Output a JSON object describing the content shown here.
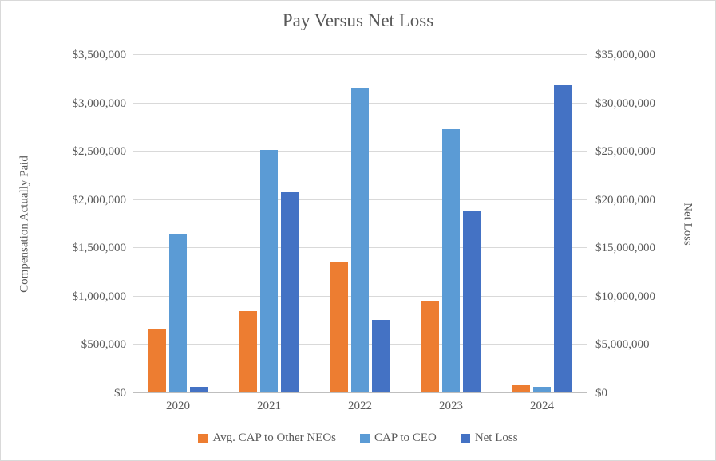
{
  "chart_data": {
    "type": "bar",
    "title": "Pay Versus Net Loss",
    "categories": [
      "2020",
      "2021",
      "2022",
      "2023",
      "2024"
    ],
    "series": [
      {
        "name": "Avg. CAP to Other NEOs",
        "axis": "left",
        "color": "#ED7D31",
        "values": [
          670000,
          850000,
          1360000,
          950000,
          85000
        ]
      },
      {
        "name": "CAP to CEO",
        "axis": "left",
        "color": "#5B9BD5",
        "values": [
          1650000,
          2520000,
          3160000,
          2730000,
          65000
        ]
      },
      {
        "name": "Net Loss",
        "axis": "right",
        "color": "#4472C4",
        "values": [
          700000,
          20800000,
          7600000,
          18800000,
          31900000
        ]
      }
    ],
    "left_axis": {
      "label": "Compensation Actually Paid",
      "min": 0,
      "max": 3500000,
      "step": 500000,
      "tick_prefix": "$"
    },
    "right_axis": {
      "label": "Net Loss",
      "min": 0,
      "max": 35000000,
      "step": 5000000,
      "tick_prefix": "$"
    },
    "legend_position": "bottom",
    "grid": true,
    "colors": {
      "gridline": "#d9d9d9",
      "axis_line": "#bfbfbf",
      "text": "#595959",
      "background": "#ffffff"
    }
  }
}
